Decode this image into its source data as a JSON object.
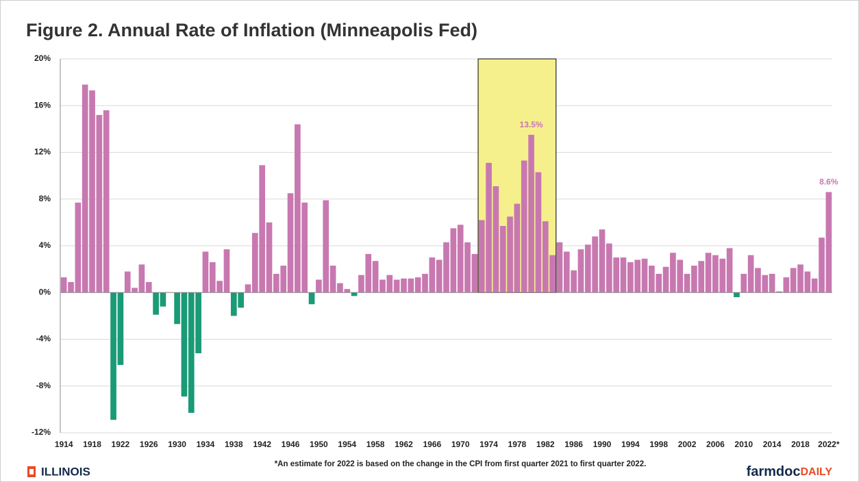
{
  "chart_data": {
    "type": "bar",
    "title": "Figure 2. Annual Rate of Inflation (Minneapolis Fed)",
    "categories": [
      "1914",
      null,
      null,
      null,
      "1918",
      null,
      null,
      null,
      "1922",
      null,
      null,
      null,
      "1926",
      null,
      null,
      null,
      "1930",
      null,
      null,
      null,
      "1934",
      null,
      null,
      null,
      "1938",
      null,
      null,
      null,
      "1942",
      null,
      null,
      null,
      "1946",
      null,
      null,
      null,
      "1950",
      null,
      null,
      null,
      "1954",
      null,
      null,
      null,
      "1958",
      null,
      null,
      null,
      "1962",
      null,
      null,
      null,
      "1966",
      null,
      null,
      null,
      "1970",
      null,
      null,
      null,
      "1974",
      null,
      null,
      null,
      "1978",
      null,
      null,
      null,
      "1982",
      null,
      null,
      null,
      "1986",
      null,
      null,
      null,
      "1990",
      null,
      null,
      null,
      "1994",
      null,
      null,
      null,
      "1998",
      null,
      null,
      null,
      "2002",
      null,
      null,
      null,
      "2006",
      null,
      null,
      null,
      "2010",
      null,
      null,
      null,
      "2014",
      null,
      null,
      null,
      "2018",
      null,
      null,
      null,
      "2022*"
    ],
    "values": [
      1.3,
      0.9,
      7.7,
      17.8,
      17.3,
      15.2,
      15.6,
      -10.9,
      -6.2,
      1.8,
      0.4,
      2.4,
      0.9,
      -1.9,
      -1.2,
      0.0,
      -2.7,
      -8.9,
      -10.3,
      -5.2,
      3.5,
      2.6,
      1.0,
      3.7,
      -2.0,
      -1.3,
      0.7,
      5.1,
      10.9,
      6.0,
      1.6,
      2.3,
      8.5,
      14.4,
      7.7,
      -1.0,
      1.1,
      7.9,
      2.3,
      0.8,
      0.3,
      -0.3,
      1.5,
      3.3,
      2.7,
      1.1,
      1.5,
      1.1,
      1.2,
      1.2,
      1.3,
      1.6,
      3.0,
      2.8,
      4.3,
      5.5,
      5.8,
      4.3,
      3.3,
      6.2,
      11.1,
      9.1,
      5.7,
      6.5,
      7.6,
      11.3,
      13.5,
      10.3,
      6.1,
      3.2,
      4.3,
      3.5,
      1.9,
      3.7,
      4.1,
      4.8,
      5.4,
      4.2,
      3.0,
      3.0,
      2.6,
      2.8,
      2.9,
      2.3,
      1.6,
      2.2,
      3.4,
      2.8,
      1.6,
      2.3,
      2.7,
      3.4,
      3.2,
      2.9,
      3.8,
      -0.4,
      1.6,
      3.2,
      2.1,
      1.5,
      1.6,
      0.1,
      1.3,
      2.1,
      2.4,
      1.8,
      1.2,
      4.7,
      8.6
    ],
    "value_labels": [
      null,
      null,
      null,
      null,
      null,
      null,
      null,
      null,
      null,
      null,
      null,
      null,
      null,
      null,
      null,
      null,
      null,
      null,
      null,
      null,
      null,
      null,
      null,
      null,
      null,
      null,
      null,
      null,
      null,
      null,
      null,
      null,
      null,
      null,
      null,
      null,
      null,
      null,
      null,
      null,
      null,
      null,
      null,
      null,
      null,
      null,
      null,
      null,
      null,
      null,
      null,
      null,
      null,
      null,
      null,
      null,
      null,
      null,
      null,
      null,
      null,
      null,
      null,
      null,
      null,
      null,
      "13.5%",
      null,
      null,
      null,
      null,
      null,
      null,
      null,
      null,
      null,
      null,
      null,
      null,
      null,
      null,
      null,
      null,
      null,
      null,
      null,
      null,
      null,
      null,
      null,
      null,
      null,
      null,
      null,
      null,
      null,
      null,
      null,
      null,
      null,
      null,
      null,
      null,
      null,
      null,
      null,
      null,
      null,
      "8.6%"
    ],
    "colors": {
      "positive": "#c878b0",
      "negative": "#1a9a76"
    },
    "highlight": {
      "from_index": 59,
      "to_index": 69,
      "color": "#f6f08c"
    },
    "ylim": [
      -12,
      20
    ],
    "yticks": [
      {
        "value": -12,
        "label": "-12%"
      },
      {
        "value": -8,
        "label": "-8%"
      },
      {
        "value": -4,
        "label": "-4%"
      },
      {
        "value": 0,
        "label": "0%"
      },
      {
        "value": 4,
        "label": "4%"
      },
      {
        "value": 8,
        "label": "8%"
      },
      {
        "value": 12,
        "label": "12%"
      },
      {
        "value": 16,
        "label": "16%"
      },
      {
        "value": 20,
        "label": "20%"
      }
    ],
    "grid": true
  },
  "footer": {
    "left": "ILLINOIS",
    "note": "*An estimate for 2022 is based on the change in the CPI from first quarter 2021 to first quarter 2022.",
    "brand": "farmdoc",
    "brand_suffix": "DAILY"
  }
}
